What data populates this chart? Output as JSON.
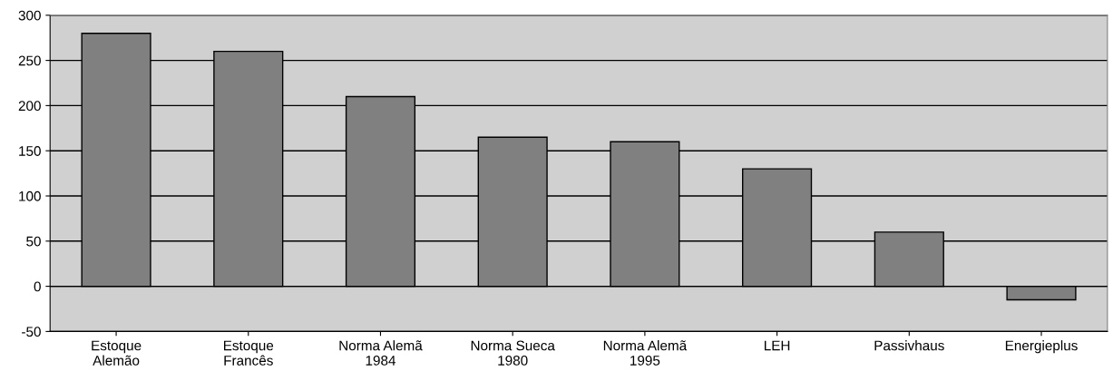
{
  "chart_data": {
    "type": "bar",
    "categories": [
      "Estoque\nAlemão",
      "Estoque\nFrancês",
      "Norma Alemã\n1984",
      "Norma Sueca\n1980",
      "Norma Alemã\n1995",
      "LEH",
      "Passivhaus",
      "Energieplus"
    ],
    "values": [
      280,
      260,
      210,
      165,
      160,
      130,
      60,
      -15
    ],
    "color": "#808080",
    "ylim": [
      -50,
      300
    ],
    "yticks": [
      -50,
      0,
      50,
      100,
      150,
      200,
      250,
      300
    ],
    "grid": "y"
  }
}
